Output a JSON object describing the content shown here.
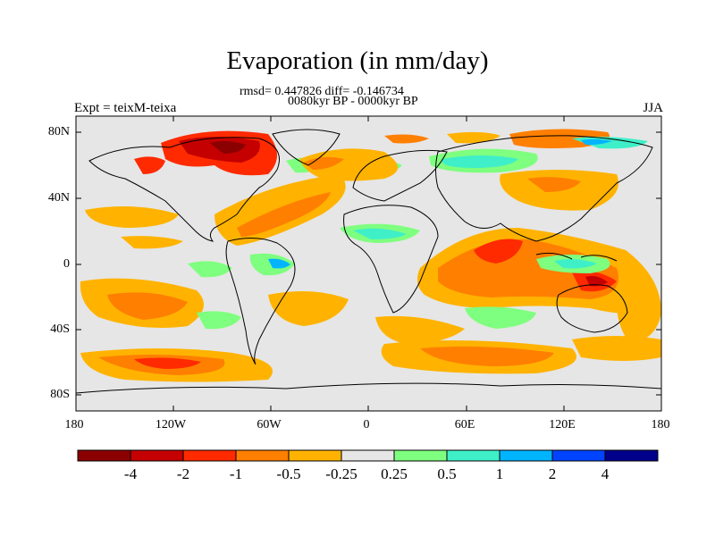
{
  "title": "Evaporation (in mm/day)",
  "stats_line": "rmsd= 0.447826 diff= -0.146734",
  "period_line": "0080kyr BP - 0000kyr BP",
  "left_label": "Expt = teixM-teixa",
  "right_label": "JJA",
  "y_ticks": [
    "80N",
    "40N",
    "0",
    "40S",
    "80S"
  ],
  "x_ticks": [
    "180",
    "120W",
    "60W",
    "0",
    "60E",
    "120E",
    "180"
  ],
  "colorbar": {
    "colors": [
      "#8b0000",
      "#c40000",
      "#ff2a00",
      "#ff7f00",
      "#ffb300",
      "#e6e6e6",
      "#7fff7f",
      "#3fefc8",
      "#00b4ff",
      "#0044ff",
      "#00008b"
    ],
    "labels": [
      "-4",
      "-2",
      "-1",
      "-0.5",
      "-0.25",
      "0.25",
      "0.5",
      "1",
      "2",
      "4"
    ]
  }
}
